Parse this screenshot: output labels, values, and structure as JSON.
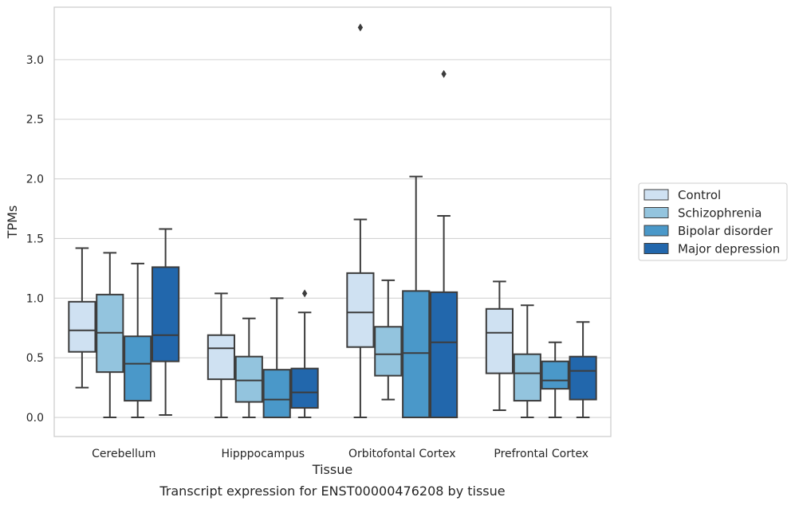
{
  "chart_data": {
    "type": "box",
    "xlabel": "Tissue",
    "ylabel": "TPMs",
    "caption": "Transcript expression for ENST00000476208 by tissue",
    "ylim": [
      -0.16,
      3.44
    ],
    "yticks": [
      "0.0",
      "0.5",
      "1.0",
      "1.5",
      "2.0",
      "2.5",
      "3.0"
    ],
    "grid": "horizontal",
    "legend_position": "right",
    "categories": [
      "Cerebellum",
      "Hipppocampus",
      "Orbitofontal Cortex",
      "Prefrontal Cortex"
    ],
    "series": [
      {
        "name": "Control",
        "color": "#cfe1f2",
        "boxes": [
          {
            "whislo": 0.25,
            "q1": 0.55,
            "med": 0.73,
            "q3": 0.97,
            "whishi": 1.42,
            "fliers": []
          },
          {
            "whislo": 0.0,
            "q1": 0.32,
            "med": 0.58,
            "q3": 0.69,
            "whishi": 1.04,
            "fliers": []
          },
          {
            "whislo": 0.0,
            "q1": 0.59,
            "med": 0.88,
            "q3": 1.21,
            "whishi": 1.66,
            "fliers": [
              3.27
            ]
          },
          {
            "whislo": 0.06,
            "q1": 0.37,
            "med": 0.71,
            "q3": 0.91,
            "whishi": 1.14,
            "fliers": []
          }
        ]
      },
      {
        "name": "Schizophrenia",
        "color": "#93c4de",
        "boxes": [
          {
            "whislo": 0.0,
            "q1": 0.38,
            "med": 0.71,
            "q3": 1.03,
            "whishi": 1.38,
            "fliers": []
          },
          {
            "whislo": 0.0,
            "q1": 0.13,
            "med": 0.31,
            "q3": 0.51,
            "whishi": 0.83,
            "fliers": []
          },
          {
            "whislo": 0.15,
            "q1": 0.35,
            "med": 0.53,
            "q3": 0.76,
            "whishi": 1.15,
            "fliers": []
          },
          {
            "whislo": 0.0,
            "q1": 0.14,
            "med": 0.37,
            "q3": 0.53,
            "whishi": 0.94,
            "fliers": []
          }
        ]
      },
      {
        "name": "Bipolar disorder",
        "color": "#4a98c9",
        "boxes": [
          {
            "whislo": 0.0,
            "q1": 0.14,
            "med": 0.45,
            "q3": 0.68,
            "whishi": 1.29,
            "fliers": []
          },
          {
            "whislo": 0.0,
            "q1": 0.0,
            "med": 0.15,
            "q3": 0.4,
            "whishi": 1.0,
            "fliers": []
          },
          {
            "whislo": 0.0,
            "q1": 0.0,
            "med": 0.54,
            "q3": 1.06,
            "whishi": 2.02,
            "fliers": []
          },
          {
            "whislo": 0.0,
            "q1": 0.24,
            "med": 0.31,
            "q3": 0.47,
            "whishi": 0.63,
            "fliers": []
          }
        ]
      },
      {
        "name": "Major depression",
        "color": "#2267ac",
        "boxes": [
          {
            "whislo": 0.02,
            "q1": 0.47,
            "med": 0.69,
            "q3": 1.26,
            "whishi": 1.58,
            "fliers": []
          },
          {
            "whislo": 0.0,
            "q1": 0.08,
            "med": 0.21,
            "q3": 0.41,
            "whishi": 0.88,
            "fliers": [
              1.04
            ]
          },
          {
            "whislo": 0.0,
            "q1": 0.0,
            "med": 0.63,
            "q3": 1.05,
            "whishi": 1.69,
            "fliers": [
              2.88
            ]
          },
          {
            "whislo": 0.0,
            "q1": 0.15,
            "med": 0.39,
            "q3": 0.51,
            "whishi": 0.8,
            "fliers": []
          }
        ]
      }
    ]
  }
}
